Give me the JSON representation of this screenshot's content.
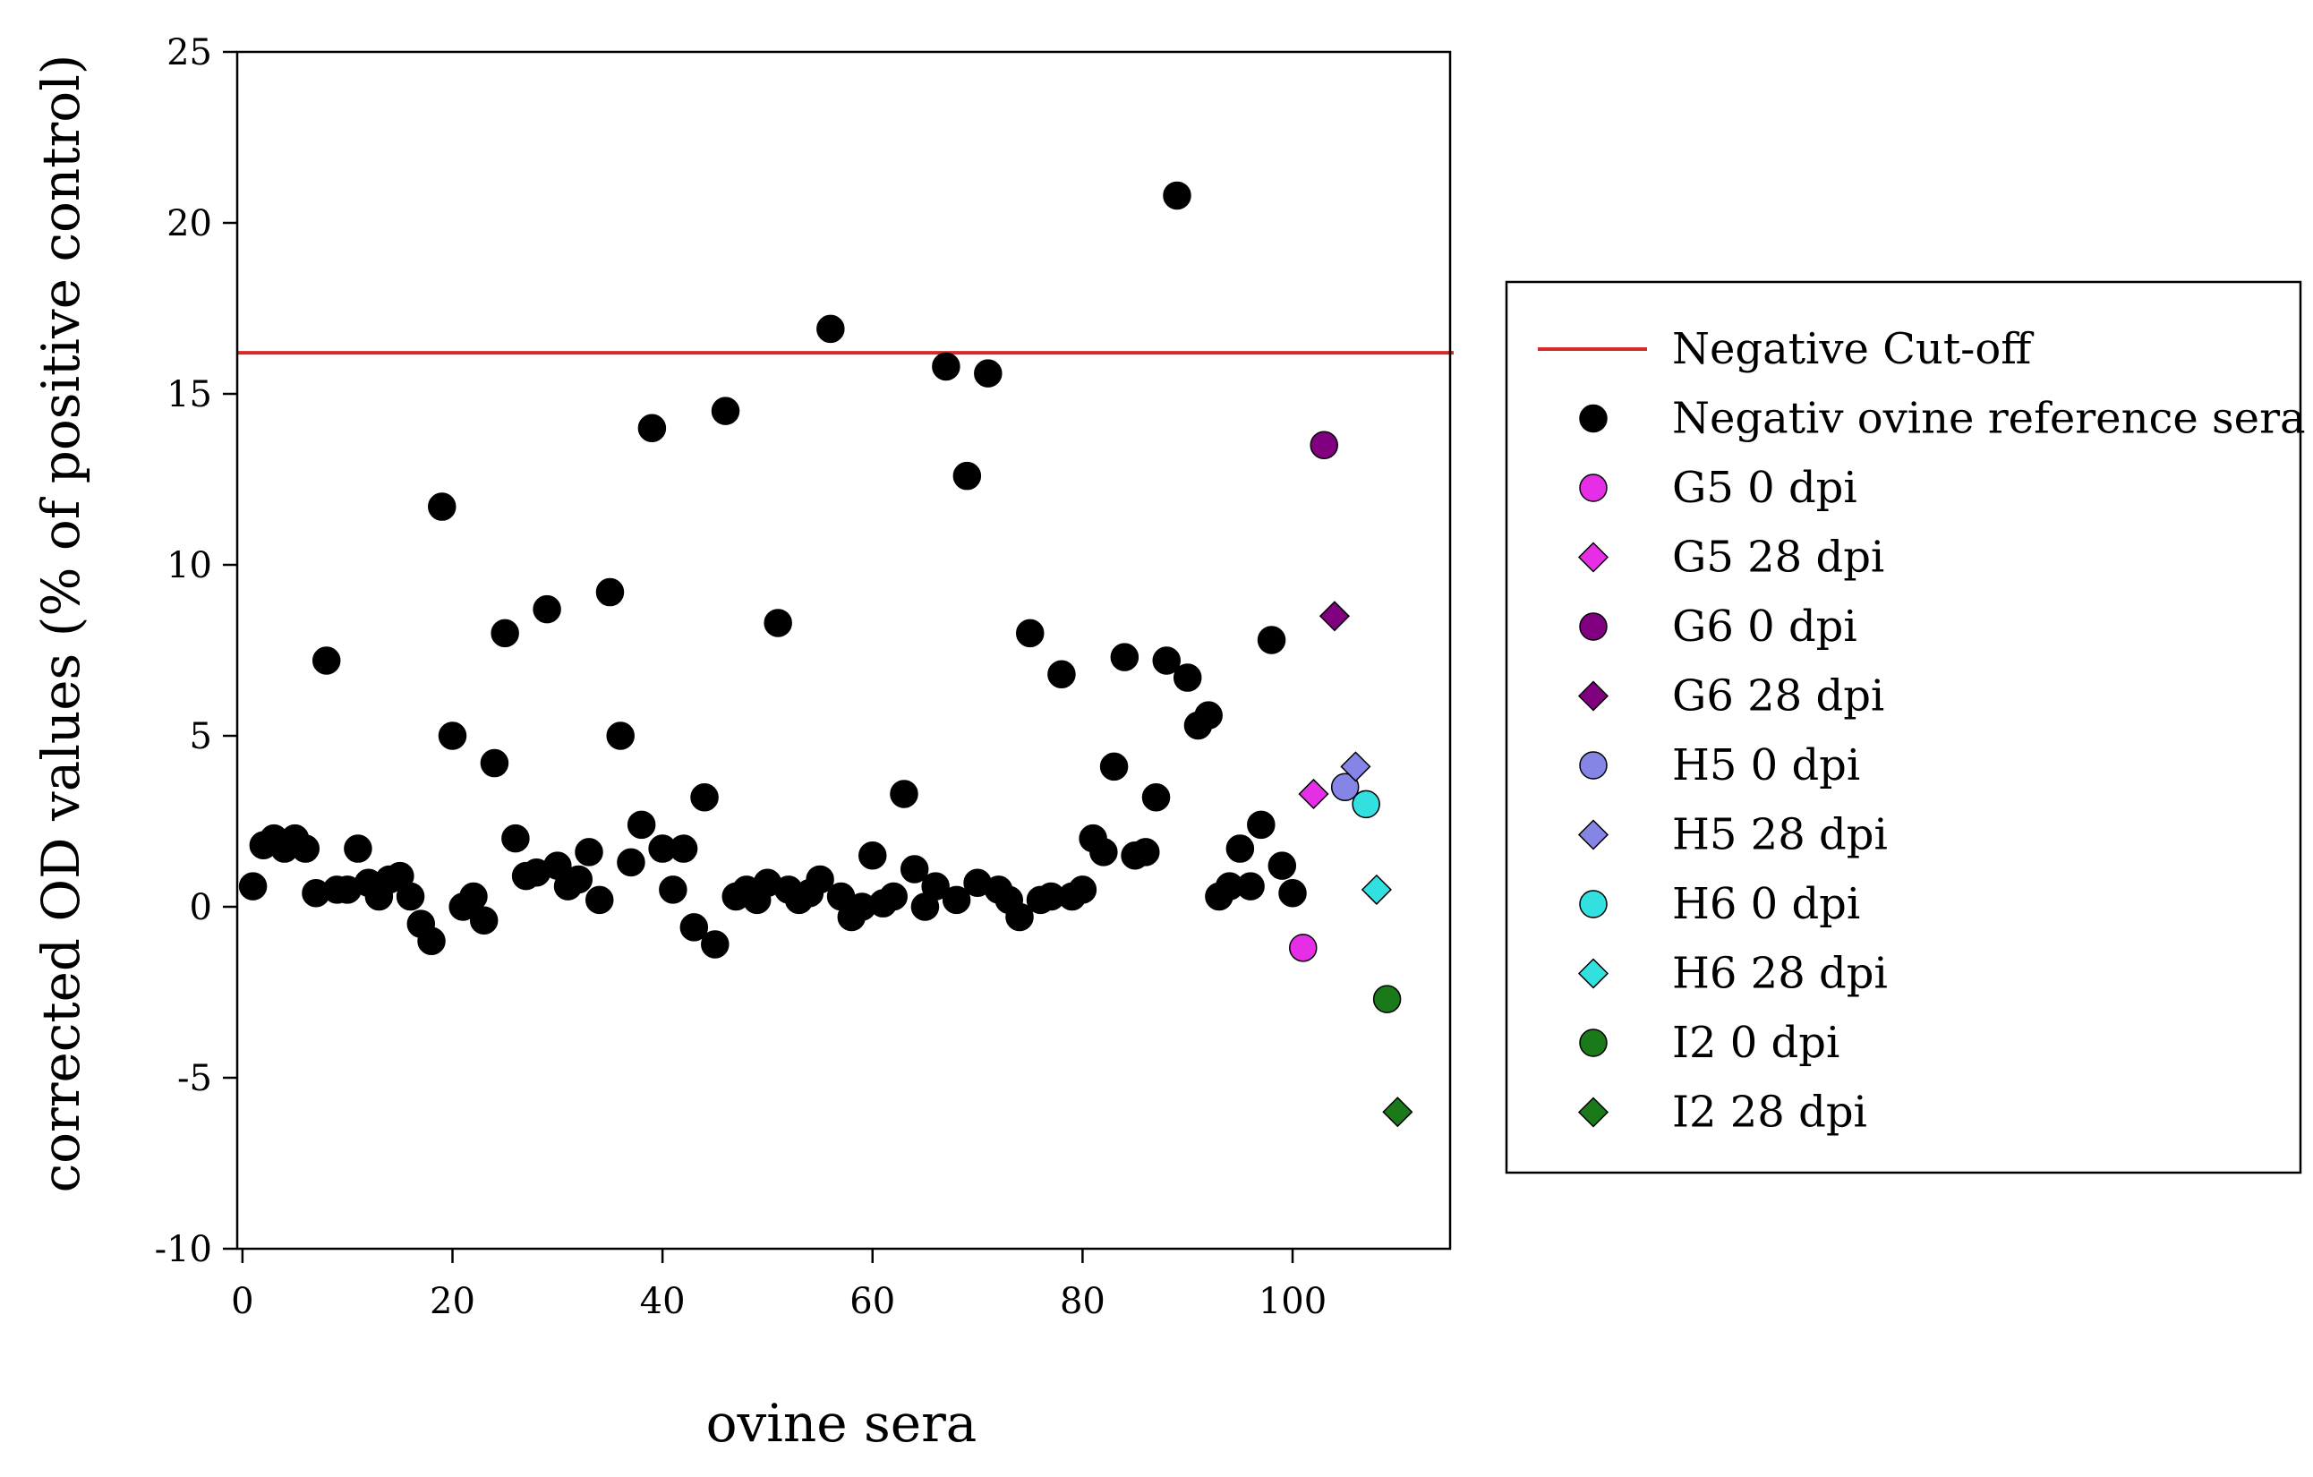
{
  "chart_data": {
    "type": "scatter",
    "title": "",
    "xlabel": "ovine  sera",
    "ylabel": "corrected OD values (% of positive control)",
    "xlim": [
      -0.5,
      115
    ],
    "ylim": [
      -10,
      25
    ],
    "x_ticks": [
      "0",
      "20",
      "40",
      "60",
      "80",
      "100"
    ],
    "y_ticks": [
      "-10",
      "-5",
      "0",
      "5",
      "10",
      "15",
      "20",
      "25"
    ],
    "grid": false,
    "legend_position": "right",
    "reference_line": {
      "name": "Negative Cut-off",
      "y": 16.2,
      "color": "#d42a2a"
    },
    "series": [
      {
        "name": "Negativ ovine reference sera",
        "marker": "circle",
        "color": "#000000",
        "points": [
          [
            1,
            0.6
          ],
          [
            2,
            1.8
          ],
          [
            3,
            2.0
          ],
          [
            4,
            1.7
          ],
          [
            5,
            2.0
          ],
          [
            6,
            1.7
          ],
          [
            7,
            0.4
          ],
          [
            8,
            7.2
          ],
          [
            9,
            0.5
          ],
          [
            10,
            0.5
          ],
          [
            11,
            1.7
          ],
          [
            12,
            0.7
          ],
          [
            13,
            0.3
          ],
          [
            14,
            0.8
          ],
          [
            15,
            0.9
          ],
          [
            16,
            0.3
          ],
          [
            17,
            -0.5
          ],
          [
            18,
            -1.0
          ],
          [
            19,
            11.7
          ],
          [
            20,
            5.0
          ],
          [
            21,
            0.0
          ],
          [
            22,
            0.3
          ],
          [
            23,
            -0.4
          ],
          [
            24,
            4.2
          ],
          [
            25,
            8.0
          ],
          [
            26,
            2.0
          ],
          [
            27,
            0.9
          ],
          [
            28,
            1.0
          ],
          [
            29,
            8.7
          ],
          [
            30,
            1.2
          ],
          [
            31,
            0.6
          ],
          [
            32,
            0.8
          ],
          [
            33,
            1.6
          ],
          [
            34,
            0.2
          ],
          [
            35,
            9.2
          ],
          [
            36,
            5.0
          ],
          [
            37,
            1.3
          ],
          [
            38,
            2.4
          ],
          [
            39,
            14.0
          ],
          [
            40,
            1.7
          ],
          [
            41,
            0.5
          ],
          [
            42,
            1.7
          ],
          [
            43,
            -0.6
          ],
          [
            44,
            3.2
          ],
          [
            45,
            -1.1
          ],
          [
            46,
            14.5
          ],
          [
            47,
            0.3
          ],
          [
            48,
            0.5
          ],
          [
            49,
            0.2
          ],
          [
            50,
            0.7
          ],
          [
            51,
            8.3
          ],
          [
            52,
            0.5
          ],
          [
            53,
            0.2
          ],
          [
            54,
            0.4
          ],
          [
            55,
            0.8
          ],
          [
            56,
            16.9
          ],
          [
            57,
            0.3
          ],
          [
            58,
            -0.3
          ],
          [
            59,
            0.0
          ],
          [
            60,
            1.5
          ],
          [
            61,
            0.1
          ],
          [
            62,
            0.3
          ],
          [
            63,
            3.3
          ],
          [
            64,
            1.1
          ],
          [
            65,
            0.0
          ],
          [
            66,
            0.6
          ],
          [
            67,
            15.8
          ],
          [
            68,
            0.2
          ],
          [
            69,
            12.6
          ],
          [
            70,
            0.7
          ],
          [
            71,
            15.6
          ],
          [
            72,
            0.5
          ],
          [
            73,
            0.2
          ],
          [
            74,
            -0.3
          ],
          [
            75,
            8.0
          ],
          [
            76,
            0.2
          ],
          [
            77,
            0.3
          ],
          [
            78,
            6.8
          ],
          [
            79,
            0.3
          ],
          [
            80,
            0.5
          ],
          [
            81,
            2.0
          ],
          [
            82,
            1.6
          ],
          [
            83,
            4.1
          ],
          [
            84,
            7.3
          ],
          [
            85,
            1.5
          ],
          [
            86,
            1.6
          ],
          [
            87,
            3.2
          ],
          [
            88,
            7.2
          ],
          [
            89,
            20.8
          ],
          [
            90,
            6.7
          ],
          [
            91,
            5.3
          ],
          [
            92,
            5.6
          ],
          [
            93,
            0.3
          ],
          [
            94,
            0.6
          ],
          [
            95,
            1.7
          ],
          [
            96,
            0.6
          ],
          [
            97,
            2.4
          ],
          [
            98,
            7.8
          ],
          [
            99,
            1.2
          ],
          [
            100,
            0.4
          ]
        ]
      },
      {
        "name": "G5 0 dpi",
        "marker": "circle",
        "color": "#e62ee6",
        "points": [
          [
            101,
            -1.2
          ]
        ]
      },
      {
        "name": "G5 28 dpi",
        "marker": "diamond",
        "color": "#e62ee6",
        "points": [
          [
            102,
            3.3
          ]
        ]
      },
      {
        "name": "G6 0 dpi",
        "marker": "circle",
        "color": "#800080",
        "points": [
          [
            103,
            13.5
          ]
        ]
      },
      {
        "name": "G6 28 dpi",
        "marker": "diamond",
        "color": "#800080",
        "points": [
          [
            104,
            8.5
          ]
        ]
      },
      {
        "name": "H5 0 dpi",
        "marker": "circle",
        "color": "#8585e6",
        "points": [
          [
            105,
            3.5
          ]
        ]
      },
      {
        "name": "H5 28 dpi",
        "marker": "diamond",
        "color": "#8585e6",
        "points": [
          [
            106,
            4.1
          ]
        ]
      },
      {
        "name": "H6 0 dpi",
        "marker": "circle",
        "color": "#33e0e0",
        "points": [
          [
            107,
            3.0
          ]
        ]
      },
      {
        "name": "H6 28 dpi",
        "marker": "diamond",
        "color": "#33e0e0",
        "points": [
          [
            108,
            0.5
          ]
        ]
      },
      {
        "name": "I2 0 dpi",
        "marker": "circle",
        "color": "#1a7a1a",
        "points": [
          [
            109,
            -2.7
          ]
        ]
      },
      {
        "name": "I2 28 dpi",
        "marker": "diamond",
        "color": "#1a7a1a",
        "points": [
          [
            110,
            -6.0
          ]
        ]
      }
    ]
  }
}
